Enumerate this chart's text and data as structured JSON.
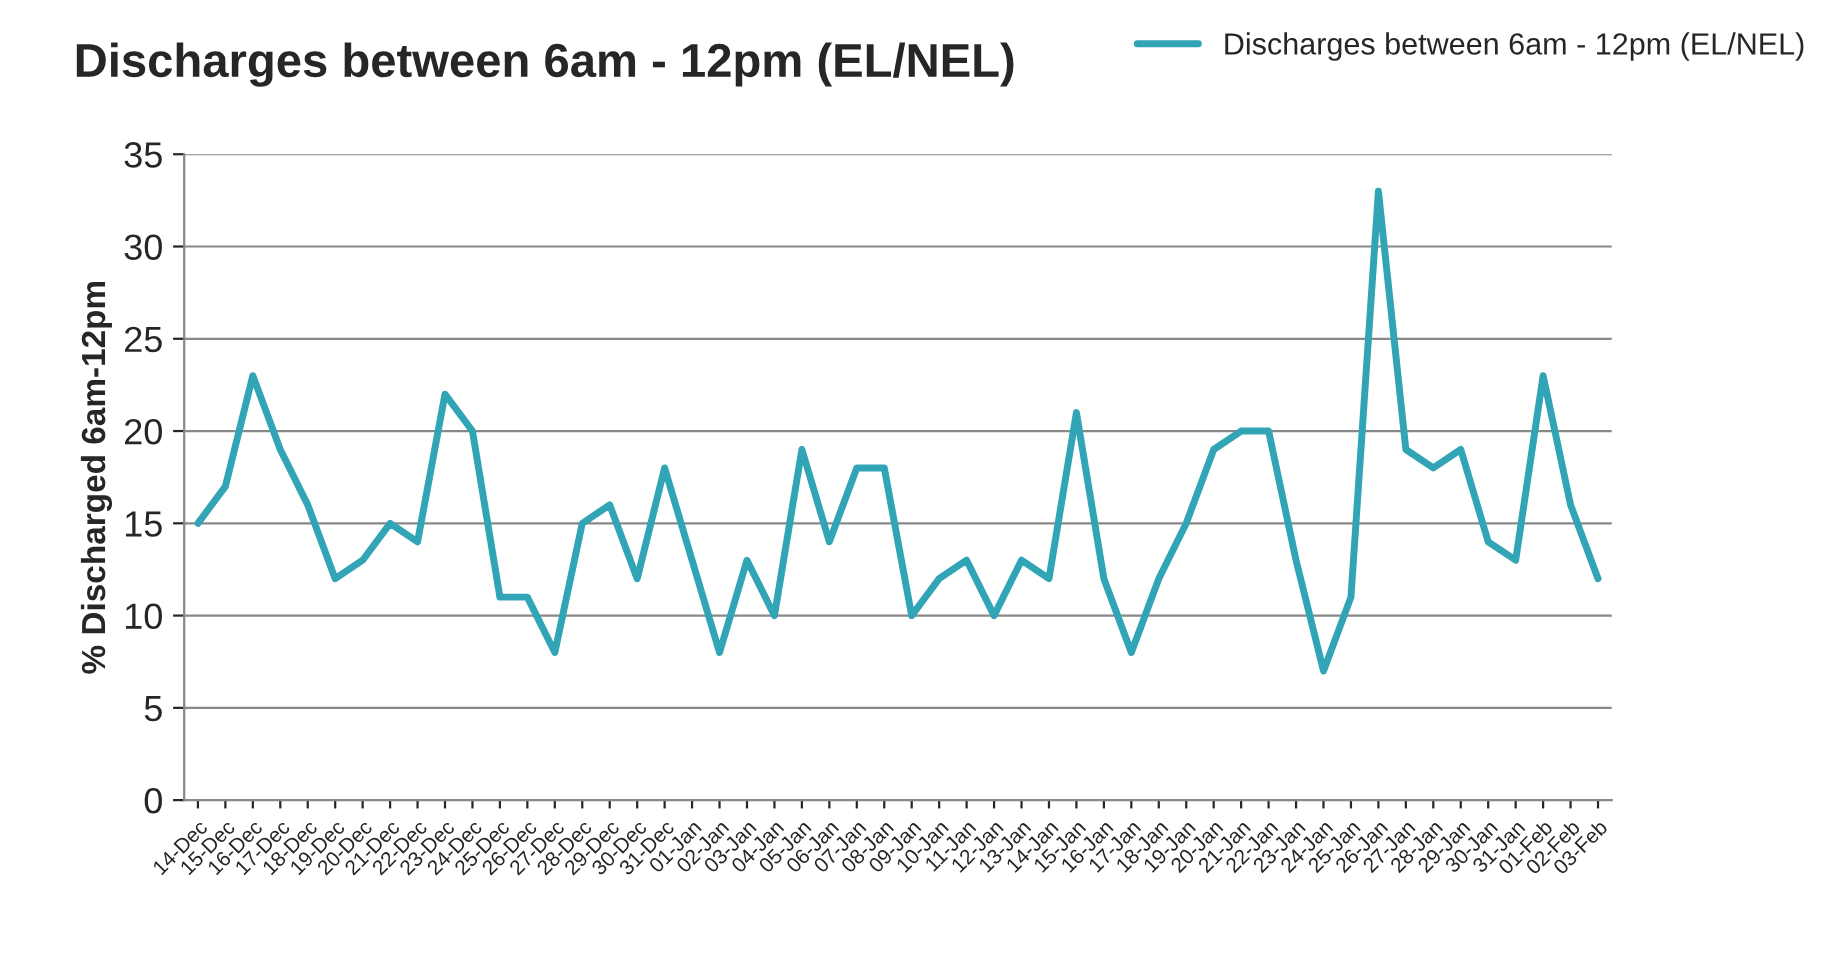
{
  "chart_data": {
    "type": "line",
    "title": "Discharges between 6am - 12pm (EL/NEL)",
    "ylabel": "% Discharged 6am-12pm",
    "categories": [
      "14-Dec",
      "15-Dec",
      "16-Dec",
      "17-Dec",
      "18-Dec",
      "19-Dec",
      "20-Dec",
      "21-Dec",
      "22-Dec",
      "23-Dec",
      "24-Dec",
      "25-Dec",
      "26-Dec",
      "27-Dec",
      "28-Dec",
      "29-Dec",
      "30-Dec",
      "31-Dec",
      "01-Jan",
      "02-Jan",
      "03-Jan",
      "04-Jan",
      "05-Jan",
      "06-Jan",
      "07-Jan",
      "08-Jan",
      "09-Jan",
      "10-Jan",
      "11-Jan",
      "12-Jan",
      "13-Jan",
      "14-Jan",
      "15-Jan",
      "16-Jan",
      "17-Jan",
      "18-Jan",
      "19-Jan",
      "20-Jan",
      "21-Jan",
      "22-Jan",
      "23-Jan",
      "24-Jan",
      "25-Jan",
      "26-Jan",
      "27-Jan",
      "28-Jan",
      "29-Jan",
      "30-Jan",
      "31-Jan",
      "01-Feb",
      "02-Feb",
      "03-Feb"
    ],
    "series": [
      {
        "name": "Discharges between 6am - 12pm (EL/NEL)",
        "color": "#31a5b5",
        "values": [
          15,
          17,
          23,
          19,
          16,
          12,
          13,
          15,
          14,
          22,
          20,
          11,
          11,
          8,
          15,
          16,
          12,
          18,
          13,
          8,
          13,
          10,
          19,
          14,
          18,
          18,
          10,
          12,
          13,
          10,
          13,
          12,
          21,
          12,
          8,
          12,
          15,
          19,
          20,
          20,
          13,
          7,
          11,
          33,
          19,
          18,
          19,
          14,
          13,
          23,
          16,
          12
        ]
      }
    ],
    "ylim": [
      0,
      35
    ],
    "yticks": [
      0,
      5,
      10,
      15,
      20,
      25,
      30,
      35
    ],
    "grid": "y",
    "legend": "top right",
    "marker": "none",
    "line_style": "solid"
  }
}
